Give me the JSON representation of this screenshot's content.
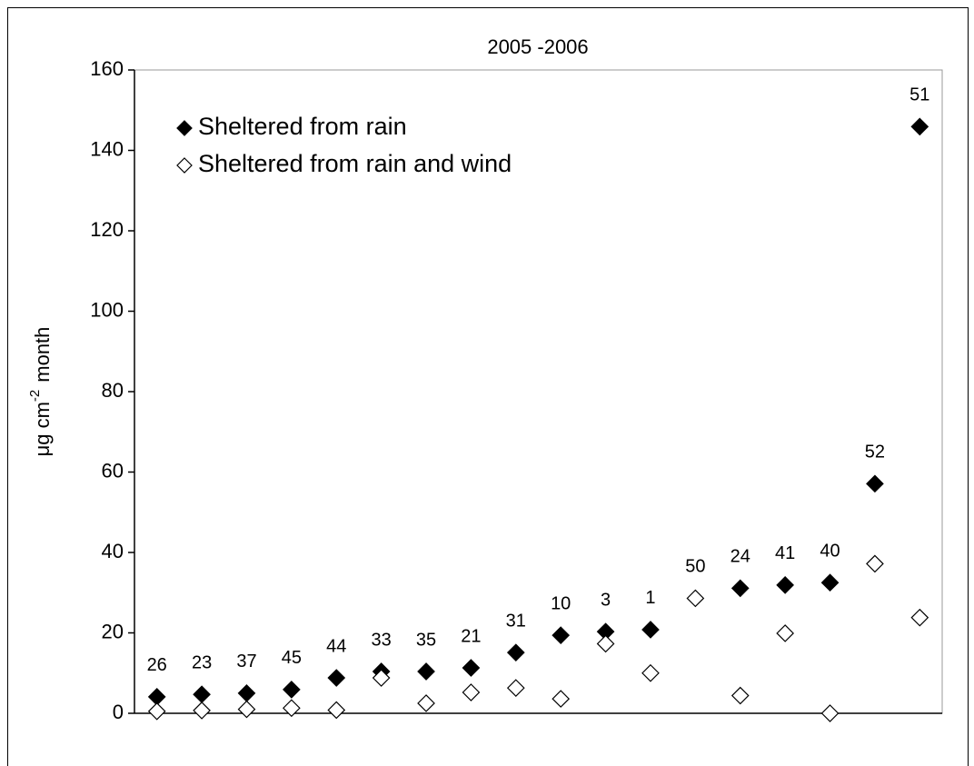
{
  "chart_data": {
    "type": "scatter",
    "title": "2005 -2006",
    "ylabel": {
      "text": "μg cm",
      "sup": "-2",
      "tail": "month"
    },
    "categories": [
      "26",
      "23",
      "37",
      "45",
      "44",
      "33",
      "35",
      "21",
      "31",
      "10",
      "3",
      "1",
      "50",
      "24",
      "41",
      "40",
      "52",
      "51"
    ],
    "series": [
      {
        "name": "Sheltered from rain",
        "color": "#000000",
        "filled": true,
        "values": [
          4.1,
          4.7,
          5.0,
          5.9,
          8.8,
          10.4,
          10.4,
          11.3,
          15.1,
          19.4,
          20.3,
          20.8,
          null,
          31.1,
          31.9,
          32.5,
          57.1,
          145.9
        ]
      },
      {
        "name": "Sheltered from rain and wind",
        "color": "#000000",
        "filled": false,
        "values": [
          0.5,
          0.7,
          1.0,
          1.3,
          0.8,
          8.8,
          2.5,
          5.2,
          6.3,
          3.6,
          17.3,
          10.0,
          28.6,
          4.4,
          19.9,
          0,
          37.2,
          23.8
        ]
      }
    ],
    "ylim": [
      0,
      160
    ],
    "yticks": [
      0,
      20,
      40,
      60,
      80,
      100,
      120,
      140,
      160
    ],
    "grid": false,
    "legend": "top-left"
  }
}
